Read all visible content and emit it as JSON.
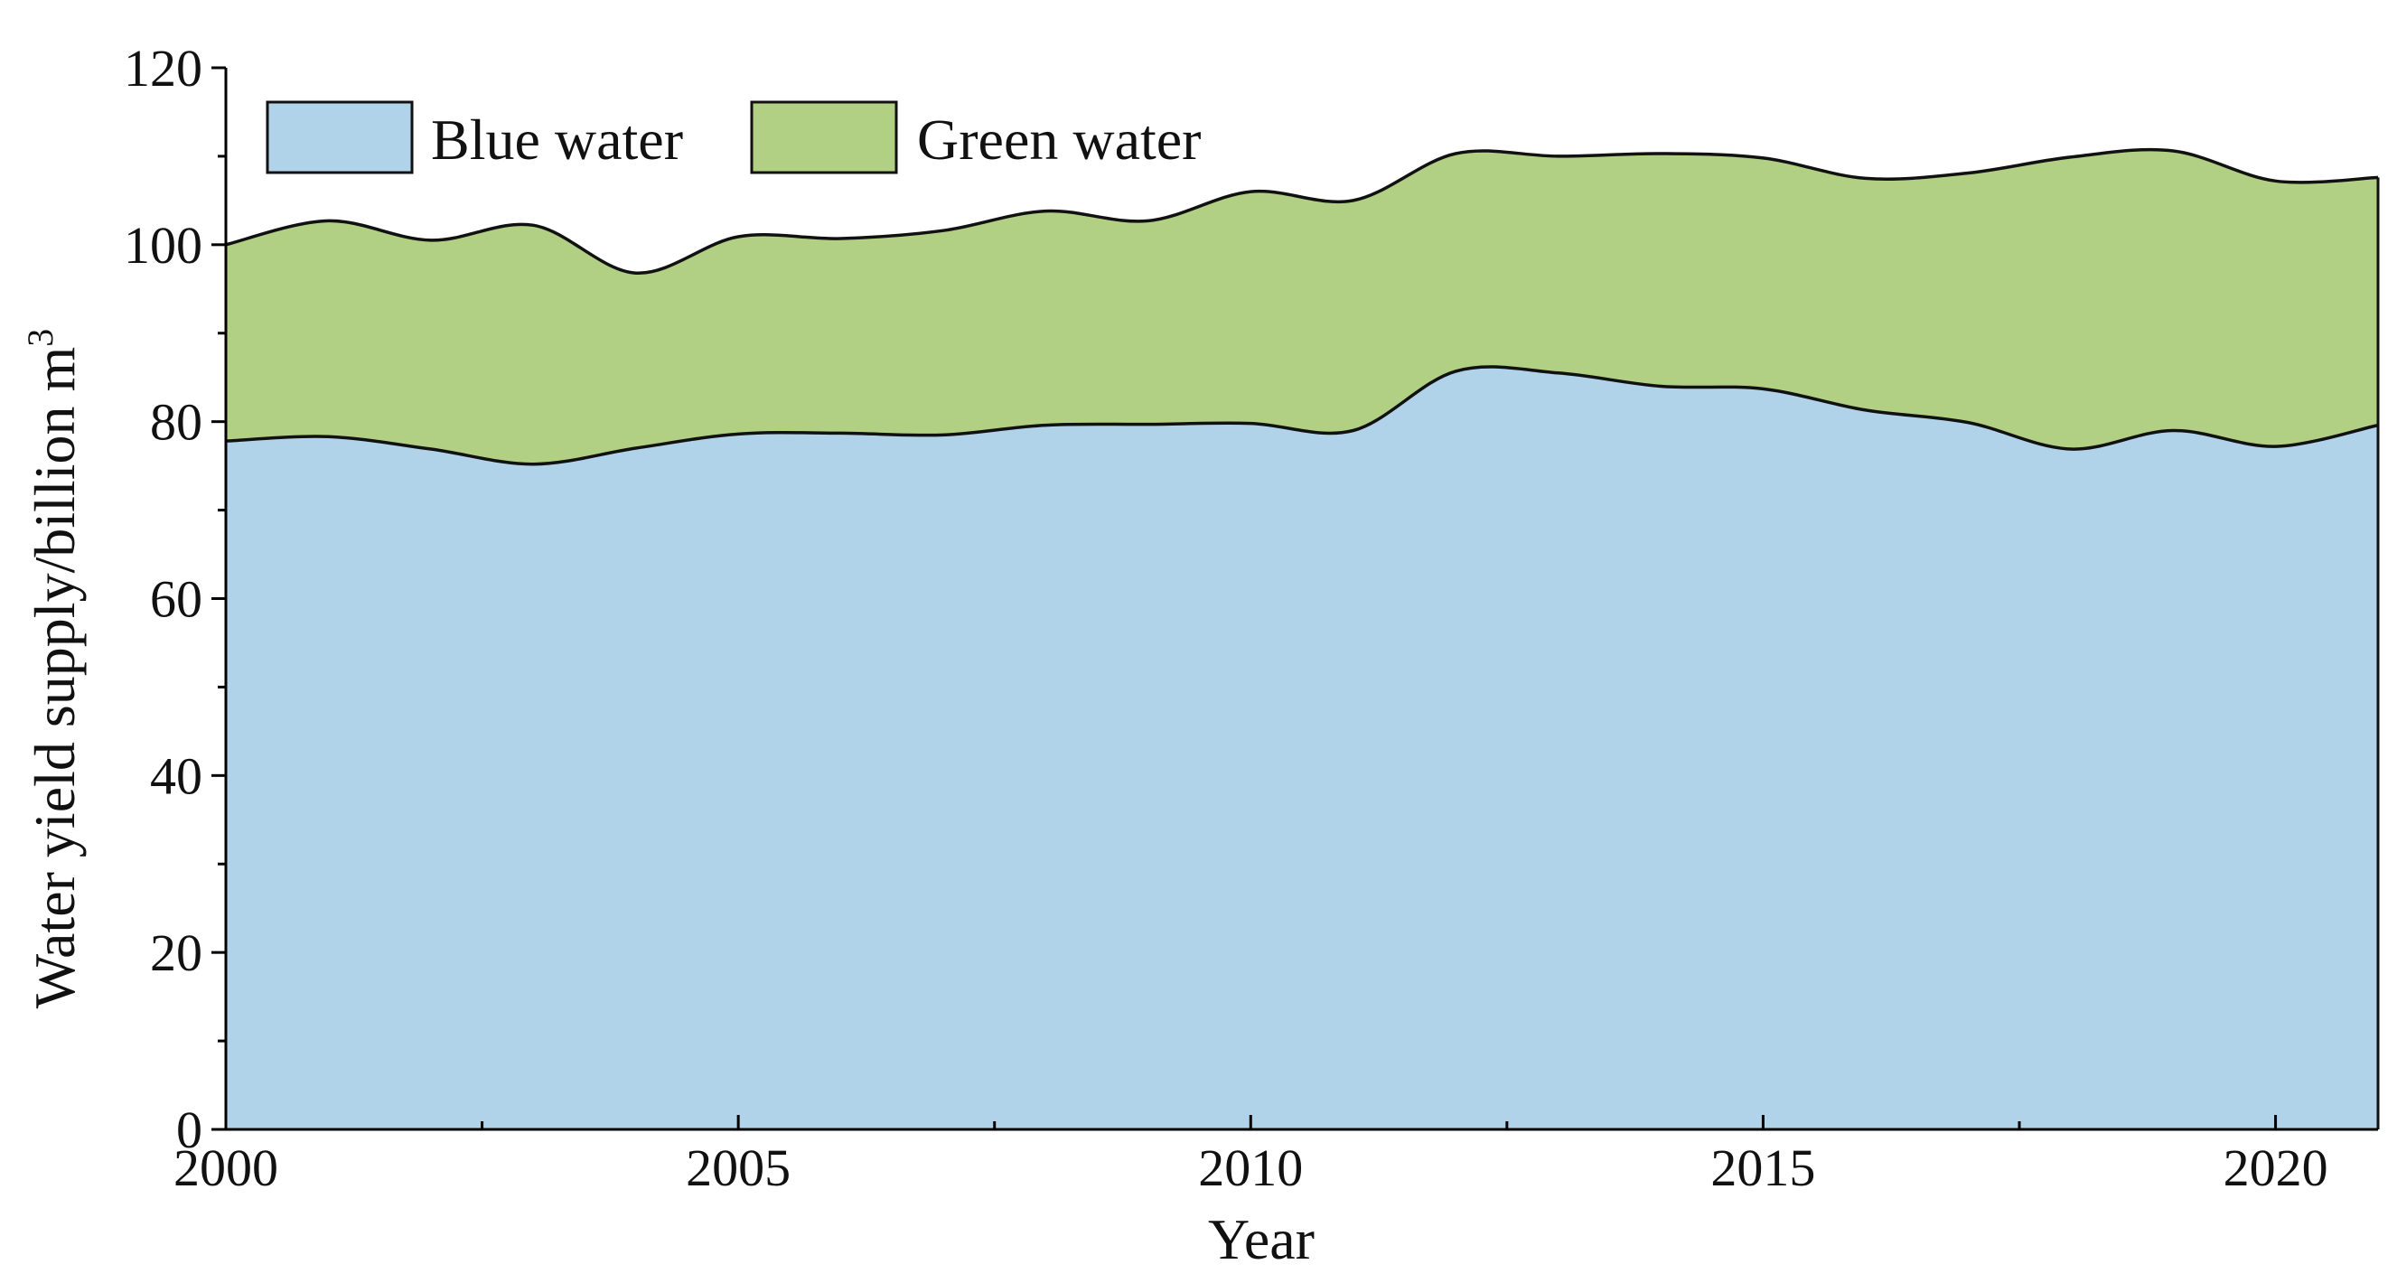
{
  "chart_data": {
    "type": "area",
    "stacked": true,
    "xlabel": "Year",
    "ylabel": "Water yield supply/billion m",
    "ylabel_superscript": "3",
    "xlim": [
      2000,
      2021
    ],
    "ylim": [
      0,
      120
    ],
    "x_ticks": [
      2000,
      2005,
      2010,
      2015,
      2020
    ],
    "y_ticks": [
      0,
      20,
      40,
      60,
      80,
      100,
      120
    ],
    "grid": false,
    "legend_position": "top-left",
    "x": [
      2000,
      2001,
      2002,
      2003,
      2004,
      2005,
      2006,
      2007,
      2008,
      2009,
      2010,
      2011,
      2012,
      2013,
      2014,
      2015,
      2016,
      2017,
      2018,
      2019,
      2020,
      2021
    ],
    "series": [
      {
        "name": "Blue water",
        "color": "#b0d3e9",
        "values": [
          77.8,
          78.3,
          76.9,
          75.2,
          77.0,
          78.6,
          78.7,
          78.5,
          79.6,
          79.7,
          79.8,
          79.0,
          85.7,
          85.5,
          84.0,
          83.7,
          81.3,
          79.9,
          76.9,
          79.0,
          77.2,
          79.6
        ]
      },
      {
        "name": "Green water",
        "color": "#b2d083",
        "values": [
          22.2,
          24.4,
          23.6,
          27.0,
          19.8,
          22.3,
          22.0,
          23.1,
          24.2,
          23.0,
          26.2,
          26.0,
          24.6,
          24.5,
          26.3,
          26.1,
          26.2,
          28.2,
          33.0,
          31.6,
          30.0,
          28.0
        ]
      }
    ]
  }
}
